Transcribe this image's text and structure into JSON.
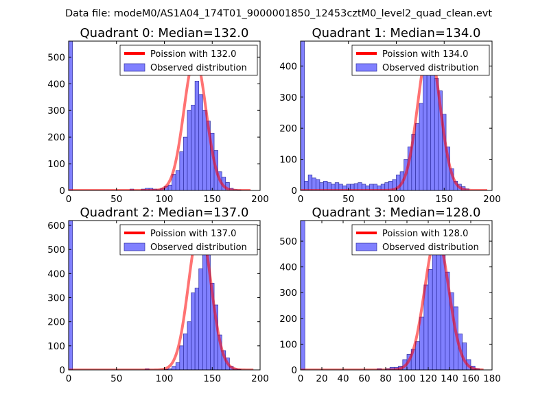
{
  "figure": {
    "suptitle": "Data file: modeM0/AS1A04_174T01_9000001850_12453cztM0_level2_quad_clean.evt"
  },
  "colors": {
    "bar_fill": "#8080ff",
    "bar_edge": "#2a2a9e",
    "fit_line": "#ff0000",
    "axis": "#000000"
  },
  "chart_data": [
    {
      "type": "bar",
      "title": "Quadrant 0: Median=132.0",
      "legend_location": "top-right",
      "legend": {
        "line": "Poission with 132.0",
        "bars": "Observed distribution"
      },
      "xlim": [
        0,
        200
      ],
      "ylim": [
        0,
        560
      ],
      "xticks": [
        0,
        50,
        100,
        150,
        200
      ],
      "yticks": [
        0,
        100,
        200,
        300,
        400,
        500
      ],
      "bin_width": 4,
      "bins": [
        [
          0,
          560
        ],
        [
          64,
          5
        ],
        [
          76,
          5
        ],
        [
          80,
          8
        ],
        [
          84,
          8
        ],
        [
          88,
          5
        ],
        [
          92,
          3
        ],
        [
          96,
          8
        ],
        [
          100,
          15
        ],
        [
          104,
          20
        ],
        [
          108,
          60
        ],
        [
          112,
          75
        ],
        [
          116,
          145
        ],
        [
          120,
          200
        ],
        [
          124,
          300
        ],
        [
          128,
          320
        ],
        [
          132,
          410
        ],
        [
          136,
          360
        ],
        [
          140,
          300
        ],
        [
          144,
          260
        ],
        [
          148,
          215
        ],
        [
          152,
          150
        ],
        [
          156,
          70
        ],
        [
          160,
          50
        ],
        [
          164,
          30
        ],
        [
          168,
          8
        ],
        [
          172,
          3
        ],
        [
          176,
          2
        ]
      ],
      "fit": {
        "mean": 132.0,
        "peak": 500,
        "x_range": [
          0,
          190
        ]
      }
    },
    {
      "type": "bar",
      "title": "Quadrant 1: Median=134.0",
      "legend_location": "top-right",
      "legend": {
        "line": "Poission with 134.0",
        "bars": "Observed distribution"
      },
      "xlim": [
        0,
        200
      ],
      "ylim": [
        0,
        480
      ],
      "xticks": [
        0,
        50,
        100,
        150,
        200
      ],
      "yticks": [
        0,
        100,
        200,
        300,
        400
      ],
      "bin_width": 4,
      "bins": [
        [
          0,
          480
        ],
        [
          4,
          30
        ],
        [
          8,
          50
        ],
        [
          12,
          40
        ],
        [
          16,
          35
        ],
        [
          20,
          25
        ],
        [
          24,
          30
        ],
        [
          28,
          25
        ],
        [
          32,
          20
        ],
        [
          36,
          25
        ],
        [
          40,
          20
        ],
        [
          44,
          15
        ],
        [
          48,
          20
        ],
        [
          52,
          20
        ],
        [
          56,
          22
        ],
        [
          60,
          25
        ],
        [
          64,
          20
        ],
        [
          68,
          15
        ],
        [
          72,
          20
        ],
        [
          76,
          20
        ],
        [
          80,
          15
        ],
        [
          84,
          20
        ],
        [
          88,
          25
        ],
        [
          92,
          30
        ],
        [
          96,
          35
        ],
        [
          100,
          50
        ],
        [
          104,
          60
        ],
        [
          108,
          100
        ],
        [
          112,
          140
        ],
        [
          116,
          180
        ],
        [
          120,
          215
        ],
        [
          124,
          280
        ],
        [
          128,
          380
        ],
        [
          132,
          420
        ],
        [
          136,
          450
        ],
        [
          140,
          360
        ],
        [
          144,
          320
        ],
        [
          148,
          245
        ],
        [
          152,
          140
        ],
        [
          156,
          70
        ],
        [
          160,
          30
        ],
        [
          164,
          20
        ],
        [
          168,
          12
        ],
        [
          172,
          5
        ]
      ],
      "fit": {
        "mean": 134.0,
        "peak": 460,
        "x_range": [
          0,
          195
        ]
      }
    },
    {
      "type": "bar",
      "title": "Quadrant 2: Median=137.0",
      "legend_location": "top-right",
      "legend": {
        "line": "Poission with 137.0",
        "bars": "Observed distribution"
      },
      "xlim": [
        0,
        200
      ],
      "ylim": [
        0,
        620
      ],
      "xticks": [
        0,
        50,
        100,
        150,
        200
      ],
      "yticks": [
        0,
        100,
        200,
        300,
        400,
        500,
        600
      ],
      "bin_width": 4,
      "bins": [
        [
          0,
          620
        ],
        [
          80,
          5
        ],
        [
          100,
          2
        ],
        [
          104,
          5
        ],
        [
          108,
          15
        ],
        [
          112,
          30
        ],
        [
          116,
          100
        ],
        [
          120,
          150
        ],
        [
          124,
          200
        ],
        [
          128,
          320
        ],
        [
          132,
          340
        ],
        [
          136,
          420
        ],
        [
          140,
          530
        ],
        [
          144,
          490
        ],
        [
          148,
          360
        ],
        [
          152,
          270
        ],
        [
          156,
          145
        ],
        [
          160,
          80
        ],
        [
          164,
          50
        ],
        [
          168,
          15
        ],
        [
          172,
          5
        ],
        [
          176,
          2
        ]
      ],
      "fit": {
        "mean": 137.0,
        "peak": 595,
        "x_range": [
          0,
          193
        ]
      }
    },
    {
      "type": "bar",
      "title": "Quadrant 3: Median=128.0",
      "legend_location": "top-right",
      "legend": {
        "line": "Poission with 128.0",
        "bars": "Observed distribution"
      },
      "xlim": [
        0,
        180
      ],
      "ylim": [
        0,
        580
      ],
      "xticks": [
        0,
        20,
        40,
        60,
        80,
        100,
        120,
        140,
        160,
        180
      ],
      "yticks": [
        0,
        100,
        200,
        300,
        400,
        500
      ],
      "bin_width": 4,
      "bins": [
        [
          0,
          580
        ],
        [
          72,
          5
        ],
        [
          80,
          5
        ],
        [
          84,
          10
        ],
        [
          88,
          10
        ],
        [
          92,
          15
        ],
        [
          96,
          40
        ],
        [
          100,
          60
        ],
        [
          104,
          80
        ],
        [
          108,
          110
        ],
        [
          112,
          205
        ],
        [
          116,
          330
        ],
        [
          120,
          390
        ],
        [
          124,
          450
        ],
        [
          128,
          560
        ],
        [
          132,
          490
        ],
        [
          136,
          380
        ],
        [
          140,
          300
        ],
        [
          144,
          245
        ],
        [
          148,
          140
        ],
        [
          152,
          105
        ],
        [
          156,
          40
        ],
        [
          160,
          15
        ],
        [
          164,
          5
        ]
      ],
      "fit": {
        "mean": 128.0,
        "peak": 520,
        "x_range": [
          0,
          172
        ]
      }
    }
  ]
}
